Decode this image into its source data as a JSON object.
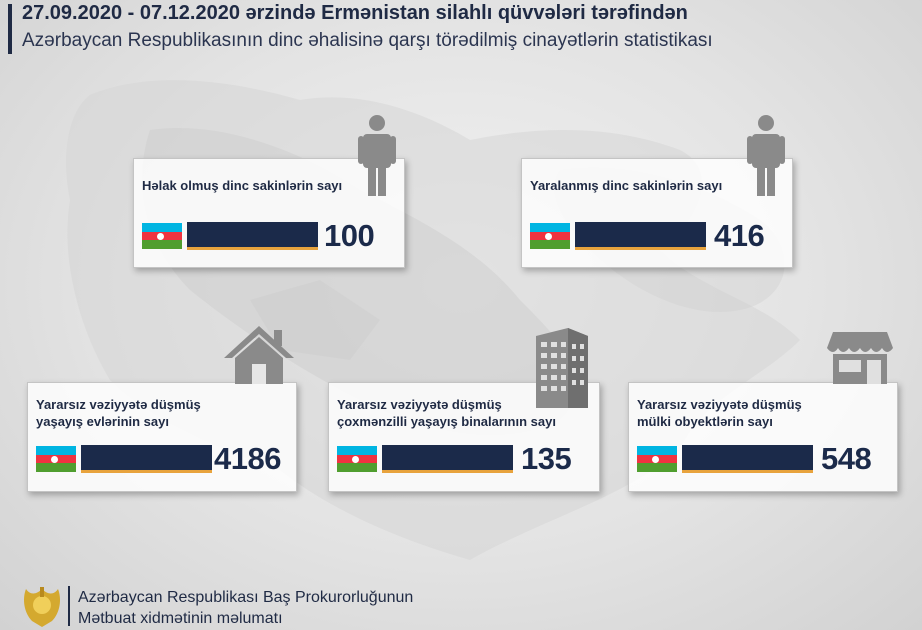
{
  "header": {
    "title_line1": "27.09.2020 - 07.12.2020 ərzində Ermənistan silahlı qüvvələri tərəfindən",
    "title_line2": "Azərbaycan Respublikasının dinc əhalisinə qarşı törədilmiş cinayətlərin statistikası"
  },
  "colors": {
    "navy": "#1b2a4a",
    "accent": "#e8a33d",
    "flag_blue": "#00b5e2",
    "flag_red": "#ef3340",
    "flag_green": "#509e2f"
  },
  "cards": [
    {
      "label_line1": "Həlak olmuş dinc sakinlərin sayı",
      "label_line2": "",
      "value": "100",
      "icon": "person-icon"
    },
    {
      "label_line1": "Yaralanmış dinc sakinlərin sayı",
      "label_line2": "",
      "value": "416",
      "icon": "person-icon"
    },
    {
      "label_line1": "Yararsız vəziyyətə düşmüş",
      "label_line2": "yaşayış evlərinin sayı",
      "value": "4186",
      "icon": "house-icon"
    },
    {
      "label_line1": "Yararsız vəziyyətə düşmüş",
      "label_line2": "çoxmənzilli yaşayış binalarının sayı",
      "value": "135",
      "icon": "apartment-building-icon"
    },
    {
      "label_line1": "Yararsız vəziyyətə düşmüş",
      "label_line2": "mülki obyektlərin sayı",
      "value": "548",
      "icon": "shop-icon"
    }
  ],
  "footer": {
    "line1": "Azərbaycan Respublikası Baş Prokurorluğunun",
    "line2": "Mətbuat xidmətinin məlumatı",
    "emblem": "prosecutor-emblem-icon"
  }
}
